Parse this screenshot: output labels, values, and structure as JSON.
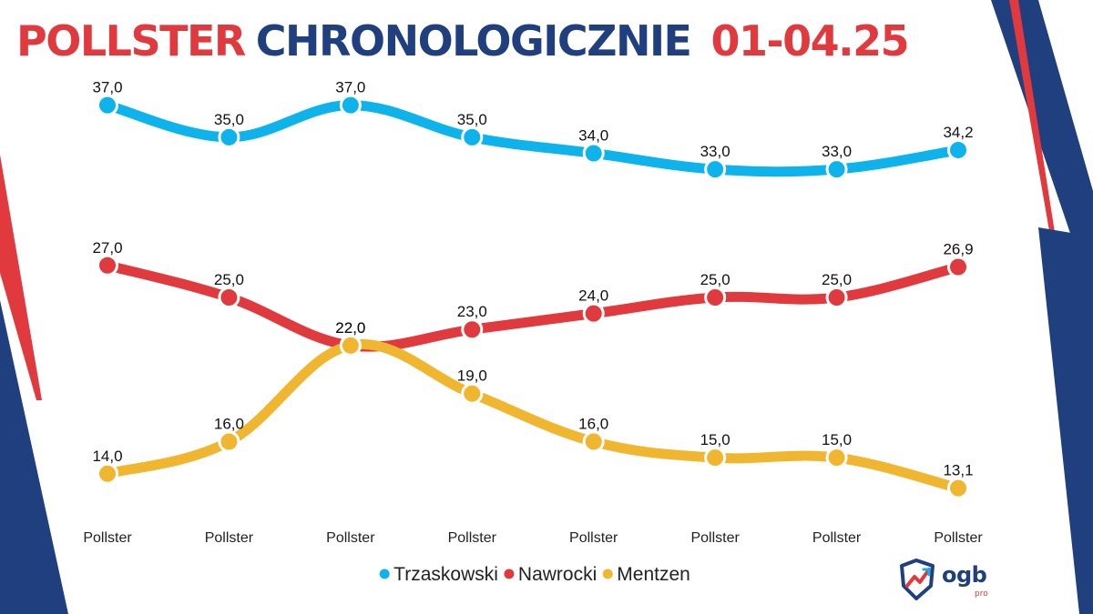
{
  "title": {
    "part1": "POLLSTER",
    "part2": "CHRONOLOGICZNIE",
    "part3": "01-04.25"
  },
  "colors": {
    "red": "#e03a3e",
    "navy": "#1f3f7f",
    "Trzaskowski": "#0db3ea",
    "Nawrocki": "#e03a3e",
    "Mentzen": "#f0b630"
  },
  "chart_data": {
    "type": "line",
    "title": "POLLSTER CHRONOLOGICZNIE 01-04.25",
    "categories": [
      "Pollster",
      "Pollster",
      "Pollster",
      "Pollster",
      "Pollster",
      "Pollster",
      "Pollster",
      "Pollster"
    ],
    "series": [
      {
        "name": "Trzaskowski",
        "values": [
          37.0,
          35.0,
          37.0,
          35.0,
          34.0,
          33.0,
          33.0,
          34.2
        ],
        "labels": [
          "37,0",
          "35,0",
          "37,0",
          "35,0",
          "34,0",
          "33,0",
          "33,0",
          "34,2"
        ]
      },
      {
        "name": "Nawrocki",
        "values": [
          27.0,
          25.0,
          22.0,
          23.0,
          24.0,
          25.0,
          25.0,
          26.9
        ],
        "labels": [
          "27,0",
          "25,0",
          "22,0",
          "23,0",
          "24,0",
          "25,0",
          "25,0",
          "26,9"
        ]
      },
      {
        "name": "Mentzen",
        "values": [
          14.0,
          16.0,
          22.0,
          19.0,
          16.0,
          15.0,
          15.0,
          13.1
        ],
        "labels": [
          "14,0",
          "16,0",
          "22,0",
          "19,0",
          "16,0",
          "15,0",
          "15,0",
          "13,1"
        ]
      }
    ],
    "ylim": [
      12,
      38
    ],
    "grid": false,
    "legend": "bottom-center",
    "legend_entries": [
      "Trzaskowski",
      "Nawrocki",
      "Mentzen"
    ],
    "icons": [
      "ogb-logo-icon"
    ]
  },
  "logo": {
    "text": "ogb",
    "sub": "pro"
  }
}
